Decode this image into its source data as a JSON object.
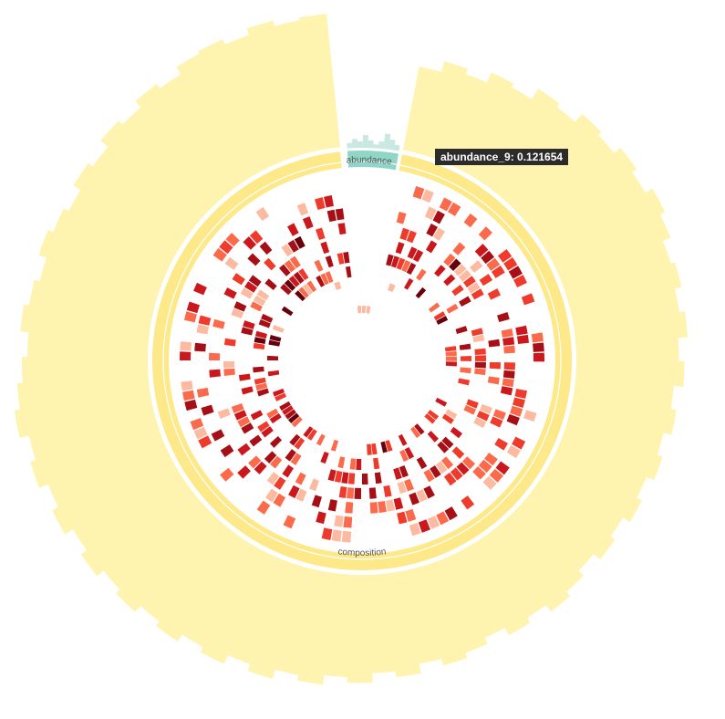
{
  "chart_data": {
    "type": "circos",
    "title": "",
    "segments": [
      {
        "name": "composition",
        "start_deg": 11,
        "end_deg": 354,
        "color": "#fde98a"
      },
      {
        "name": "abundance",
        "start_deg": 356,
        "end_deg": 10,
        "color": "#8fd6c8"
      }
    ],
    "tracks": {
      "composition_outer_histogram": {
        "color": "#fff3b0",
        "values": [
          0.62,
          0.7,
          0.66,
          0.74,
          0.71,
          0.8,
          0.77,
          0.85,
          0.82,
          0.88,
          0.84,
          0.9,
          0.86,
          0.8,
          0.83,
          0.78,
          0.82,
          0.75,
          0.79,
          0.72,
          0.76,
          0.7,
          0.74,
          0.68,
          0.72,
          0.66,
          0.7,
          0.64,
          0.69,
          0.73,
          0.67,
          0.71,
          0.65,
          0.7,
          0.74,
          0.69,
          0.76,
          0.72,
          0.79,
          0.75,
          0.82,
          0.78,
          0.85,
          0.8,
          0.87,
          0.83,
          0.89,
          0.85,
          0.91,
          0.87,
          0.93,
          0.88,
          0.95,
          0.9,
          0.97,
          0.93,
          1.0,
          0.96,
          0.92,
          0.88,
          0.94,
          0.9,
          0.86,
          0.92,
          0.88,
          0.84,
          0.9,
          0.86,
          0.93,
          0.89,
          0.95,
          0.91,
          0.97,
          0.99,
          0.95,
          1.0,
          0.96,
          0.98
        ]
      },
      "abundance_histogram": {
        "color": "#c8e8e1",
        "values": [
          0.2,
          0.35,
          0.25,
          0.5,
          0.3,
          0.15,
          0.28,
          0.6,
          0.4,
          0.22
        ]
      },
      "composition_heatmap": {
        "palette": [
          "#fcbba1",
          "#fb6a4a",
          "#ef3b2c",
          "#cb181d",
          "#a50f15",
          "#67000d"
        ],
        "rings": 7
      }
    },
    "tooltip": {
      "label": "abundance_9",
      "value": "0.121654"
    }
  },
  "tooltip_text": "abundance_9: 0.121654",
  "segment_labels": {
    "composition": "composition",
    "abundance": "abundance"
  }
}
